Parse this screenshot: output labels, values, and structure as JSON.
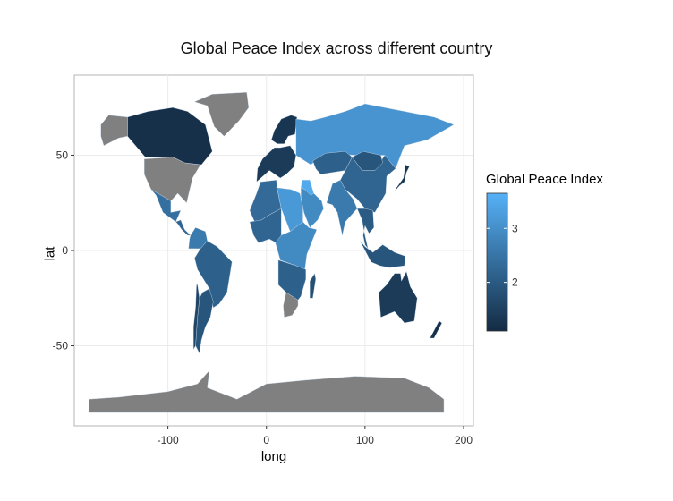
{
  "chart_data": {
    "type": "map",
    "title": "Global Peace Index across different country",
    "xlabel": "long",
    "ylabel": "lat",
    "xlim": [
      -195,
      210
    ],
    "ylim": [
      -92,
      92
    ],
    "x_ticks": [
      {
        "value": -100,
        "label": "-100"
      },
      {
        "value": 0,
        "label": "0"
      },
      {
        "value": 100,
        "label": "100"
      },
      {
        "value": 200,
        "label": "200"
      }
    ],
    "y_ticks": [
      {
        "value": 50,
        "label": "50"
      },
      {
        "value": 0,
        "label": "0"
      },
      {
        "value": -50,
        "label": "-50"
      }
    ],
    "grid": true,
    "missing_color": "#808080",
    "legend": {
      "title": "Global Peace Index",
      "placement": "right",
      "range": [
        1.1,
        3.65
      ],
      "ticks": [
        {
          "value": 2,
          "label": "2"
        },
        {
          "value": 3,
          "label": "3"
        }
      ],
      "color_low": "#132b43",
      "color_high": "#56b1f7"
    },
    "regions": [
      {
        "name": "Canada",
        "value": 1.2
      },
      {
        "name": "Greenland",
        "value": null
      },
      {
        "name": "Alaska",
        "value": null
      },
      {
        "name": "United States",
        "value": null
      },
      {
        "name": "Mexico",
        "value": 2.4
      },
      {
        "name": "Central America",
        "value": 2.2
      },
      {
        "name": "Colombia/Venezuela",
        "value": 2.6
      },
      {
        "name": "Brazil",
        "value": 2.1
      },
      {
        "name": "Argentina",
        "value": 1.9
      },
      {
        "name": "Chile",
        "value": 1.6
      },
      {
        "name": "Scandinavia",
        "value": 1.3
      },
      {
        "name": "Western Europe",
        "value": 1.4
      },
      {
        "name": "Russia",
        "value": 3.1
      },
      {
        "name": "Kazakhstan",
        "value": 2.1
      },
      {
        "name": "Middle East",
        "value": 2.9
      },
      {
        "name": "Iraq/Syria",
        "value": 3.5
      },
      {
        "name": "South Asia",
        "value": 2.6
      },
      {
        "name": "China",
        "value": 2.2
      },
      {
        "name": "Mongolia",
        "value": 1.9
      },
      {
        "name": "Japan",
        "value": 1.3
      },
      {
        "name": "Southeast Asia",
        "value": 2.0
      },
      {
        "name": "Indonesia",
        "value": 1.9
      },
      {
        "name": "North Africa",
        "value": 2.3
      },
      {
        "name": "Libya/Sudan",
        "value": 3.2
      },
      {
        "name": "West Africa",
        "value": 2.2
      },
      {
        "name": "Central Africa",
        "value": 2.9
      },
      {
        "name": "Southern Africa",
        "value": 2.1
      },
      {
        "name": "South Africa",
        "value": null
      },
      {
        "name": "Madagascar",
        "value": 1.8
      },
      {
        "name": "Australia",
        "value": 1.4
      },
      {
        "name": "New Zealand",
        "value": 1.2
      },
      {
        "name": "Antarctica",
        "value": null
      }
    ]
  }
}
